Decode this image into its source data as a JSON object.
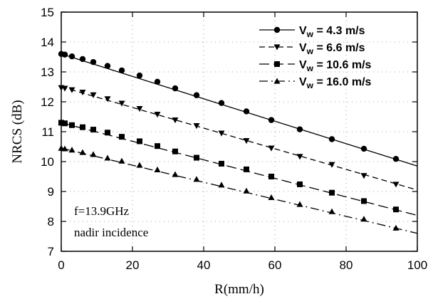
{
  "chart_data": {
    "type": "line",
    "xlabel": "R(mm/h)",
    "ylabel": "NRCS (dB)",
    "xlim": [
      0,
      100
    ],
    "ylim": [
      7,
      15
    ],
    "xticks": [
      "0",
      "20",
      "40",
      "60",
      "80",
      "100"
    ],
    "yticks": [
      "7",
      "8",
      "9",
      "10",
      "11",
      "12",
      "13",
      "14",
      "15"
    ],
    "grid": "dotted",
    "legend_position": "top-right",
    "annotations": [
      "f=13.9GHz",
      "nadir incidence"
    ],
    "series": [
      {
        "name": "4.3 m/s",
        "legend_main": "V",
        "legend_sub": "w",
        "legend_rest": " = 4.3 m/s",
        "marker": "circle",
        "dash": "solid",
        "line_x": [
          0,
          100
        ],
        "line_y": [
          13.6,
          9.85
        ],
        "points_x": [
          0,
          1,
          3,
          6,
          9,
          13,
          17,
          22,
          27,
          32,
          38,
          45,
          52,
          59,
          67,
          76,
          85,
          94
        ],
        "points_y": [
          13.6,
          13.58,
          13.52,
          13.43,
          13.33,
          13.2,
          13.05,
          12.88,
          12.67,
          12.45,
          12.22,
          11.96,
          11.68,
          11.39,
          11.08,
          10.75,
          10.43,
          10.09
        ]
      },
      {
        "name": "6.6 m/s",
        "legend_main": "V",
        "legend_sub": "w",
        "legend_rest": " = 6.6 m/s",
        "marker": "triangle-down",
        "dash": "dashed",
        "line_x": [
          0,
          100
        ],
        "line_y": [
          12.5,
          9.05
        ],
        "points_x": [
          0,
          1,
          3,
          6,
          9,
          13,
          17,
          22,
          27,
          32,
          38,
          45,
          52,
          59,
          67,
          76,
          85,
          94
        ],
        "points_y": [
          12.47,
          12.45,
          12.4,
          12.32,
          12.23,
          12.1,
          11.95,
          11.77,
          11.58,
          11.39,
          11.2,
          10.95,
          10.7,
          10.45,
          10.17,
          9.9,
          9.53,
          9.24
        ]
      },
      {
        "name": "10.6 m/s",
        "legend_main": "V",
        "legend_sub": "w",
        "legend_rest": " = 10.6 m/s",
        "marker": "square",
        "dash": "long-dash",
        "line_x": [
          0,
          100
        ],
        "line_y": [
          11.3,
          8.2
        ],
        "points_x": [
          0,
          1,
          3,
          6,
          9,
          13,
          17,
          22,
          27,
          32,
          38,
          45,
          52,
          59,
          67,
          76,
          85,
          94
        ],
        "points_y": [
          11.3,
          11.28,
          11.22,
          11.15,
          11.07,
          10.97,
          10.83,
          10.68,
          10.52,
          10.34,
          10.13,
          9.93,
          9.74,
          9.5,
          9.24,
          8.96,
          8.68,
          8.4
        ]
      },
      {
        "name": "16.0 m/s",
        "legend_main": "V",
        "legend_sub": "w",
        "legend_rest": " = 16.0 m/s",
        "marker": "triangle-up",
        "dash": "dash-dot",
        "line_x": [
          0,
          100
        ],
        "line_y": [
          10.45,
          7.6
        ],
        "points_x": [
          0,
          1,
          3,
          6,
          9,
          13,
          17,
          22,
          27,
          32,
          38,
          45,
          52,
          59,
          67,
          76,
          85,
          94
        ],
        "points_y": [
          10.45,
          10.43,
          10.39,
          10.31,
          10.24,
          10.12,
          10.02,
          9.88,
          9.73,
          9.57,
          9.41,
          9.22,
          9.02,
          8.8,
          8.57,
          8.33,
          8.08,
          7.78
        ]
      }
    ]
  }
}
